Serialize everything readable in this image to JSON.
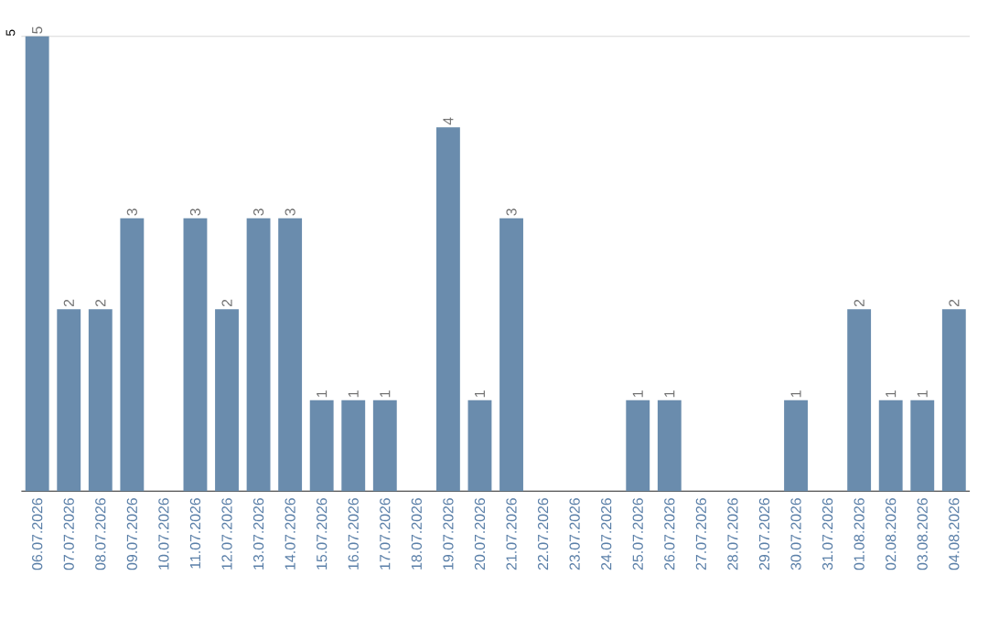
{
  "chart_data": {
    "type": "bar",
    "categories": [
      "06.07.2026",
      "07.07.2026",
      "08.07.2026",
      "09.07.2026",
      "10.07.2026",
      "11.07.2026",
      "12.07.2026",
      "13.07.2026",
      "14.07.2026",
      "15.07.2026",
      "16.07.2026",
      "17.07.2026",
      "18.07.2026",
      "19.07.2026",
      "20.07.2026",
      "21.07.2026",
      "22.07.2026",
      "23.07.2026",
      "24.07.2026",
      "25.07.2026",
      "26.07.2026",
      "27.07.2026",
      "28.07.2026",
      "29.07.2026",
      "30.07.2026",
      "31.07.2026",
      "01.08.2026",
      "02.08.2026",
      "03.08.2026",
      "04.08.2026"
    ],
    "values": [
      5,
      2,
      2,
      3,
      0,
      3,
      2,
      3,
      3,
      1,
      1,
      1,
      0,
      4,
      1,
      3,
      0,
      0,
      0,
      1,
      1,
      0,
      0,
      0,
      1,
      0,
      2,
      1,
      1,
      2
    ],
    "value_labels": [
      "5",
      "2",
      "2",
      "3",
      null,
      "3",
      "2",
      "3",
      "3",
      "1",
      "1",
      "1",
      null,
      "4",
      "1",
      "3",
      null,
      null,
      null,
      "1",
      "1",
      null,
      null,
      null,
      "1",
      null,
      "2",
      "1",
      "1",
      "2"
    ],
    "color": "#6a8cad",
    "ylim": [
      0,
      5
    ],
    "yticks": [
      {
        "value": 0,
        "label": null
      },
      5
    ],
    "grid": "y"
  }
}
